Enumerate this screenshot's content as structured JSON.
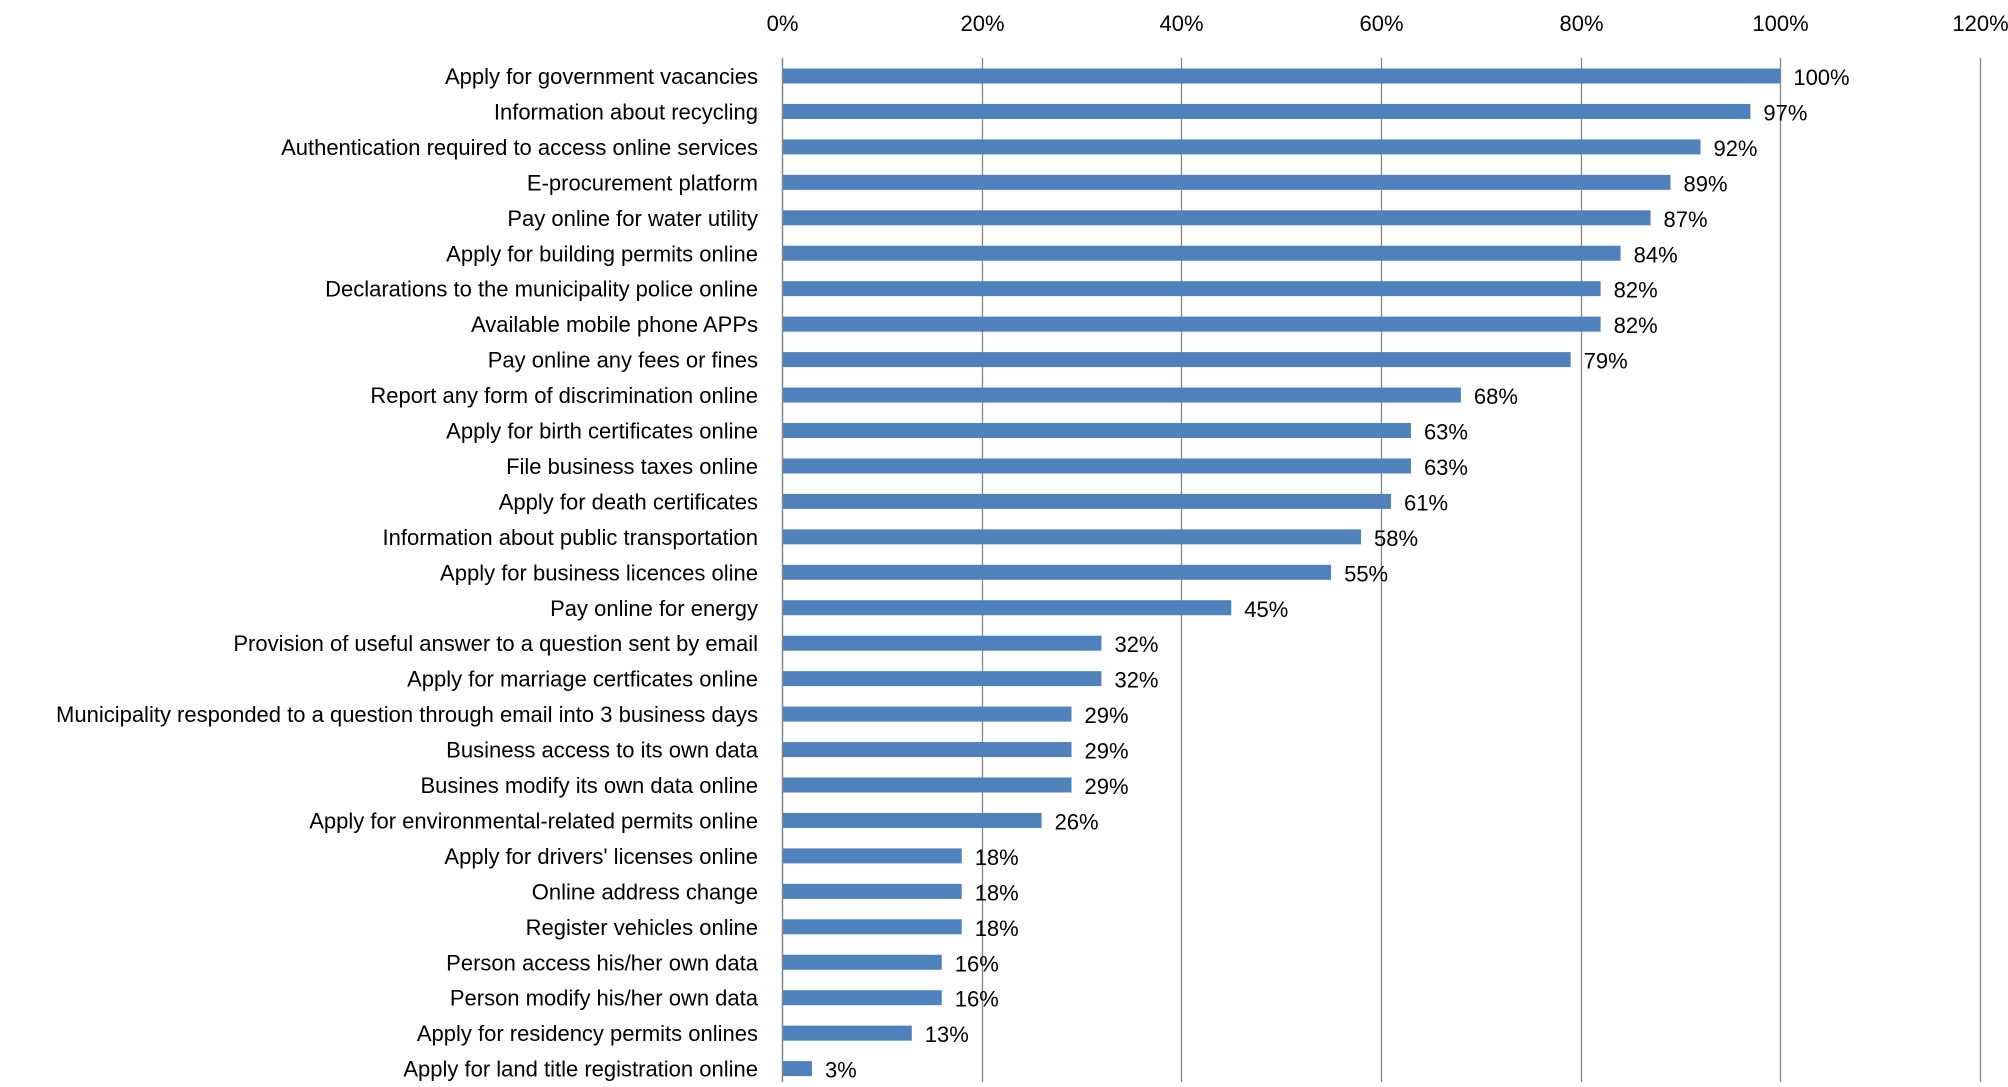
{
  "chart_data": {
    "type": "bar",
    "orientation": "horizontal",
    "value_format": "percent",
    "xlim": [
      0,
      120
    ],
    "xticks": [
      0,
      20,
      40,
      60,
      80,
      100,
      120
    ],
    "xtick_labels": [
      "0%",
      "20%",
      "40%",
      "60%",
      "80%",
      "100%",
      "120%"
    ],
    "axis_position": "top",
    "grid": "vertical",
    "legend": "none",
    "bar_color": "#4F81BD",
    "gridline_color": "#868686",
    "categories": [
      "Apply for government vacancies",
      "Information about recycling",
      "Authentication required to access online services",
      "E-procurement platform",
      "Pay online for water utility",
      "Apply for building permits online",
      "Declarations to the municipality police online",
      "Available mobile phone APPs",
      "Pay online any fees or fines",
      "Report any form of discrimination online",
      "Apply for birth certificates online",
      "File business taxes online",
      "Apply for death certificates",
      "Information about public transportation",
      "Apply for business licences oline",
      "Pay online for energy",
      "Provision of useful answer to a question sent by email",
      "Apply for marriage certficates online",
      "Municipality responded to a question through email into 3 business days",
      "Business access to its own data",
      "Busines modify its own data online",
      "Apply for environmental-related permits online",
      "Apply for drivers' licenses online",
      "Online address change",
      "Register vehicles online",
      "Person access his/her own data",
      "Person modify his/her own data",
      "Apply for residency permits onlines",
      "Apply for land title registration online"
    ],
    "values": [
      100,
      97,
      92,
      89,
      87,
      84,
      82,
      82,
      79,
      68,
      63,
      63,
      61,
      58,
      55,
      45,
      32,
      32,
      29,
      29,
      29,
      26,
      18,
      18,
      18,
      16,
      16,
      13,
      3
    ],
    "data_labels": [
      "100%",
      "97%",
      "92%",
      "89%",
      "87%",
      "84%",
      "82%",
      "82%",
      "79%",
      "68%",
      "63%",
      "63%",
      "61%",
      "58%",
      "55%",
      "45%",
      "32%",
      "32%",
      "29%",
      "29%",
      "29%",
      "26%",
      "18%",
      "18%",
      "18%",
      "16%",
      "16%",
      "13%",
      "3%"
    ]
  }
}
